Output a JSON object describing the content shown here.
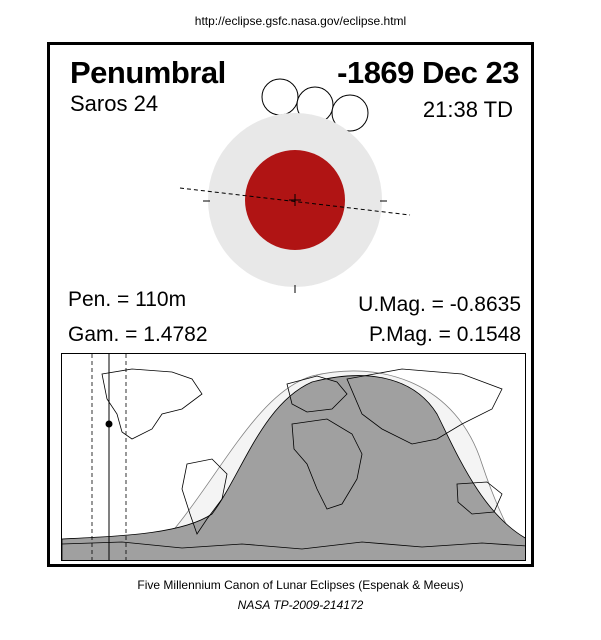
{
  "header": {
    "url": "http://eclipse.gsfc.nasa.gov/eclipse.html"
  },
  "eclipse": {
    "type": "Penumbral",
    "date": "-1869 Dec 23",
    "saros": "Saros  24",
    "time": "21:38 TD",
    "pen_duration": "Pen. = 110m",
    "gamma": "Gam. = 1.4782",
    "umbral_magnitude": "U.Mag. = -0.8635",
    "penumbral_magnitude": "P.Mag. = 0.1548"
  },
  "colors": {
    "penumbra": "#e8e8e8",
    "umbra": "#b01414",
    "map_visible": "#a0a0a0",
    "map_partial": "#f4f4f4"
  },
  "footer": {
    "title": "Five Millennium Canon of Lunar Eclipses (Espenak & Meeus)",
    "reference": "NASA TP-2009-214172"
  }
}
